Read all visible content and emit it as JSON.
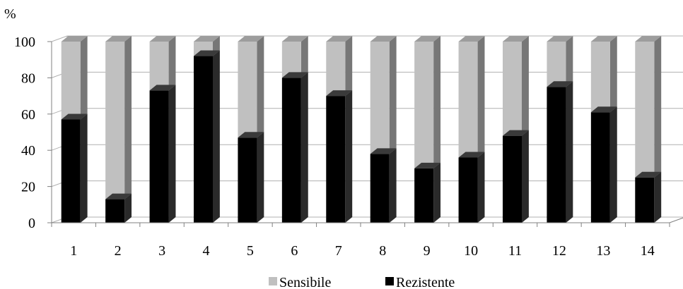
{
  "chart_data": {
    "type": "bar",
    "stacked": true,
    "three_d": true,
    "ylabel": "%",
    "ylim": [
      0,
      100
    ],
    "yticks": [
      0,
      20,
      40,
      60,
      80,
      100
    ],
    "grid": true,
    "legend_position": "bottom",
    "categories": [
      "1",
      "2",
      "3",
      "4",
      "5",
      "6",
      "7",
      "8",
      "9",
      "10",
      "11",
      "12",
      "13",
      "14"
    ],
    "series": [
      {
        "name": "Rezistente",
        "color": "#000000",
        "values": [
          57,
          13,
          73,
          92,
          47,
          80,
          70,
          38,
          30,
          36,
          48,
          75,
          61,
          25
        ]
      },
      {
        "name": "Sensibile",
        "color": "#c0c0c0",
        "values": [
          43,
          87,
          27,
          8,
          53,
          20,
          30,
          62,
          70,
          64,
          52,
          25,
          39,
          75
        ]
      }
    ],
    "legend_order": [
      "Sensibile",
      "Rezistente"
    ]
  }
}
